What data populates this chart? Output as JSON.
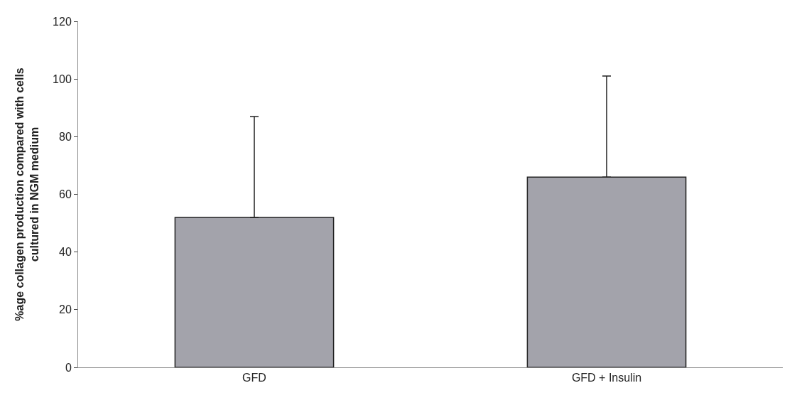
{
  "chart_data": {
    "type": "bar",
    "ylabel": "%age collagen production compared with cells cultured in NGM medium",
    "categories": [
      "GFD",
      "GFD + Insulin"
    ],
    "values": [
      52,
      66
    ],
    "errors": [
      [
        52,
        87
      ],
      [
        66,
        101
      ]
    ],
    "color": "#a3a3ab",
    "ylim": [
      0,
      120
    ],
    "yticks": [
      0,
      20,
      40,
      60,
      80,
      100,
      120
    ]
  }
}
